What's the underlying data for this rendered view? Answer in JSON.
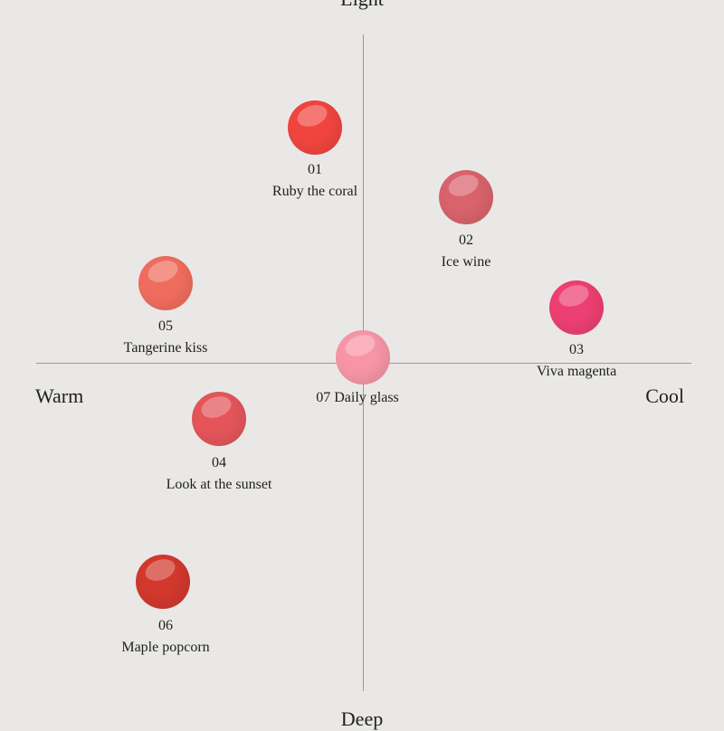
{
  "axes": {
    "top": "Light",
    "bottom": "Deep",
    "left": "Warm",
    "right": "Cool"
  },
  "shades": [
    {
      "number": "01",
      "name": "Ruby the coral",
      "color": "#f0453f"
    },
    {
      "number": "02",
      "name": "Ice wine",
      "color": "#d8636c"
    },
    {
      "number": "03",
      "name": "Viva magenta",
      "color": "#ec3f72"
    },
    {
      "number": "04",
      "name": "Look at the sunset",
      "color": "#e4555a"
    },
    {
      "number": "05",
      "name": "Tangerine kiss",
      "color": "#f06d5e"
    },
    {
      "number": "06",
      "name": "Maple popcorn",
      "color": "#d2382d"
    },
    {
      "number": "07",
      "name": "Daily glass",
      "color": "#f795a6"
    }
  ]
}
